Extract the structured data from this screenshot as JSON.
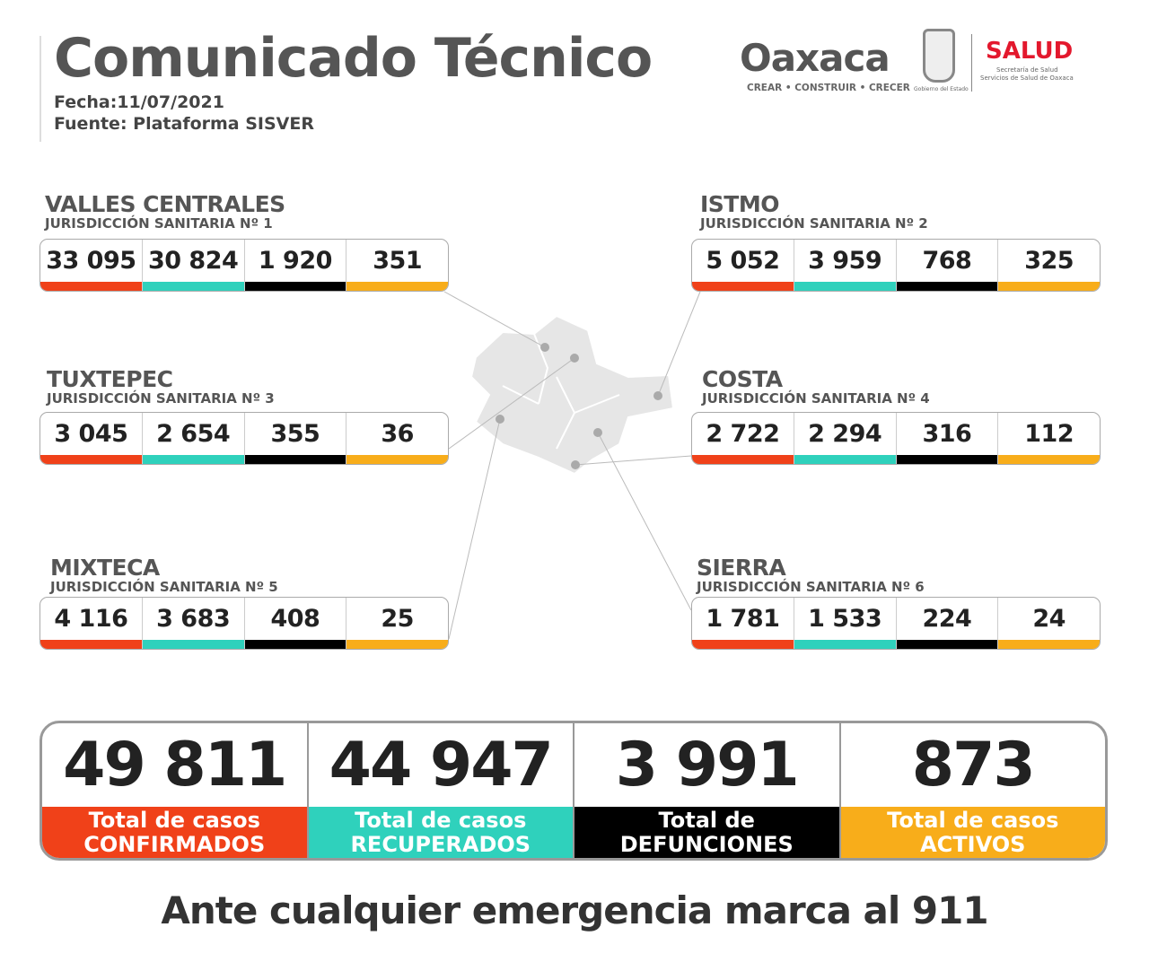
{
  "header": {
    "title": "Comunicado Técnico",
    "date": "Fecha:11/07/2021",
    "source": "Fuente: Plataforma SISVER"
  },
  "logos": {
    "oaxaca": "Oaxaca",
    "slogan": "CREAR • CONSTRUIR • CRECER",
    "gobierno": "Gobierno del Estado",
    "salud": "SALUD",
    "salud_sub1": "Secretaría de Salud",
    "salud_sub2": "Servicios de Salud de Oaxaca"
  },
  "colors": {
    "confirmados": "#f04119",
    "recuperados": "#2fd1bc",
    "defunciones": "#000000",
    "activos": "#f8ad1a",
    "map": "#e6e6e6"
  },
  "regions": [
    {
      "name": "VALLES CENTRALES",
      "sub": "JURISDICCIÓN SANITARIA Nº 1",
      "values": [
        "33 095",
        "30 824",
        "1 920",
        "351"
      ]
    },
    {
      "name": "ISTMO",
      "sub": "JURISDICCIÓN SANITARIA Nº 2",
      "values": [
        "5 052",
        "3 959",
        "768",
        "325"
      ]
    },
    {
      "name": "TUXTEPEC",
      "sub": "JURISDICCIÓN SANITARIA Nº 3",
      "values": [
        "3 045",
        "2 654",
        "355",
        "36"
      ]
    },
    {
      "name": "COSTA",
      "sub": "JURISDICCIÓN SANITARIA Nº 4",
      "values": [
        "2 722",
        "2 294",
        "316",
        "112"
      ]
    },
    {
      "name": "MIXTECA",
      "sub": "JURISDICCIÓN SANITARIA Nº 5",
      "values": [
        "4 116",
        "3 683",
        "408",
        "25"
      ]
    },
    {
      "name": "SIERRA",
      "sub": "JURISDICCIÓN SANITARIA Nº 6",
      "values": [
        "1 781",
        "1 533",
        "224",
        "24"
      ]
    }
  ],
  "totals": [
    {
      "value": "49 811",
      "line1": "Total de casos",
      "line2": "CONFIRMADOS"
    },
    {
      "value": "44 947",
      "line1": "Total de casos",
      "line2": "RECUPERADOS"
    },
    {
      "value": "3 991",
      "line1": "Total de",
      "line2": "DEFUNCIONES"
    },
    {
      "value": "873",
      "line1": "Total de casos",
      "line2": "ACTIVOS"
    }
  ],
  "footer": "Ante cualquier emergencia marca al 911"
}
